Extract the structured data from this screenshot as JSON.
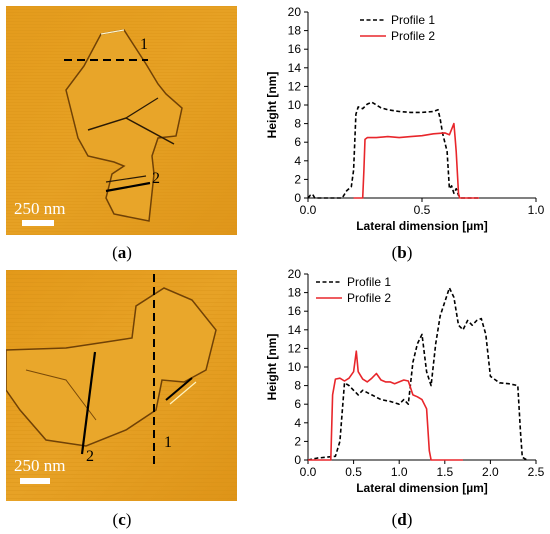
{
  "panels": {
    "a": {
      "caption": "a",
      "scale_label": "250 nm",
      "profile_labels": [
        "1",
        "2"
      ]
    },
    "b": {
      "caption": "b"
    },
    "c": {
      "caption": "c",
      "scale_label": "250 nm",
      "profile_labels": [
        "2",
        "1"
      ]
    },
    "d": {
      "caption": "d"
    }
  },
  "colors": {
    "profile1": "#000000",
    "profile2": "#e8262b",
    "afm_base": "#e39a1a"
  },
  "chart_data": [
    {
      "type": "line",
      "panel": "b",
      "title": "",
      "xlabel": "Lateral dimension [µm]",
      "ylabel": "Height [nm]",
      "xlim": [
        0,
        1.0
      ],
      "ylim": [
        0,
        20
      ],
      "xticks": [
        "0.0",
        "0.5",
        "1.0"
      ],
      "yticks": [
        "0",
        "2",
        "4",
        "6",
        "8",
        "10",
        "12",
        "14",
        "16",
        "18",
        "20"
      ],
      "legend_position": "top-right",
      "series": [
        {
          "name": "Profile 1",
          "style": "dashed",
          "color": "#000000",
          "x": [
            0.0,
            0.01,
            0.02,
            0.03,
            0.05,
            0.1,
            0.15,
            0.17,
            0.19,
            0.2,
            0.21,
            0.22,
            0.24,
            0.26,
            0.28,
            0.3,
            0.32,
            0.35,
            0.4,
            0.45,
            0.5,
            0.55,
            0.57,
            0.58,
            0.59,
            0.6,
            0.61,
            0.62,
            0.63,
            0.64,
            0.65,
            0.66,
            0.67,
            0.7,
            0.75
          ],
          "y": [
            0.0,
            0.3,
            0.4,
            0.0,
            0.0,
            0.0,
            0.0,
            0.8,
            1.2,
            3.0,
            9.0,
            9.8,
            9.6,
            10.1,
            10.3,
            10.0,
            9.7,
            9.5,
            9.3,
            9.2,
            9.2,
            9.3,
            9.5,
            8.5,
            7.0,
            6.0,
            5.0,
            1.0,
            1.3,
            0.5,
            1.0,
            0.3,
            0.0,
            0.0,
            0.0
          ]
        },
        {
          "name": "Profile 2",
          "style": "solid",
          "color": "#e8262b",
          "x": [
            0.2,
            0.24,
            0.245,
            0.25,
            0.26,
            0.3,
            0.35,
            0.4,
            0.45,
            0.5,
            0.55,
            0.6,
            0.62,
            0.64,
            0.645,
            0.65,
            0.66,
            0.665,
            0.7,
            0.75
          ],
          "y": [
            0.0,
            0.0,
            3.0,
            6.3,
            6.5,
            6.5,
            6.6,
            6.5,
            6.6,
            6.7,
            6.9,
            7.0,
            6.8,
            8.0,
            6.5,
            5.0,
            0.5,
            0.0,
            0.0,
            0.0
          ]
        }
      ]
    },
    {
      "type": "line",
      "panel": "d",
      "title": "",
      "xlabel": "Lateral dimension [µm]",
      "ylabel": "Height [nm]",
      "xlim": [
        0,
        2.5
      ],
      "ylim": [
        0,
        20
      ],
      "xticks": [
        "0.0",
        "0.5",
        "1.0",
        "1.5",
        "2.0",
        "2.5"
      ],
      "yticks": [
        "0",
        "2",
        "4",
        "6",
        "8",
        "10",
        "12",
        "14",
        "16",
        "18",
        "20"
      ],
      "legend_position": "top-left",
      "series": [
        {
          "name": "Profile 1",
          "style": "dashed",
          "color": "#000000",
          "x": [
            0.0,
            0.1,
            0.2,
            0.3,
            0.35,
            0.4,
            0.45,
            0.5,
            0.55,
            0.6,
            0.7,
            0.8,
            0.9,
            1.0,
            1.05,
            1.1,
            1.15,
            1.2,
            1.25,
            1.3,
            1.35,
            1.4,
            1.45,
            1.5,
            1.55,
            1.6,
            1.65,
            1.7,
            1.75,
            1.8,
            1.85,
            1.9,
            1.95,
            2.0,
            2.1,
            2.2,
            2.3,
            2.33,
            2.35,
            2.4
          ],
          "y": [
            0.0,
            0.2,
            0.3,
            0.4,
            2.0,
            8.3,
            8.0,
            7.5,
            7.0,
            7.5,
            7.0,
            6.5,
            6.3,
            6.0,
            6.5,
            6.0,
            10.5,
            12.5,
            13.5,
            9.5,
            8.0,
            12.5,
            15.5,
            17.0,
            18.5,
            17.5,
            14.5,
            14.0,
            15.0,
            14.5,
            15.0,
            15.2,
            13.5,
            9.0,
            8.3,
            8.2,
            8.0,
            3.0,
            0.3,
            0.0
          ]
        },
        {
          "name": "Profile 2",
          "style": "solid",
          "color": "#e8262b",
          "x": [
            0.0,
            0.2,
            0.25,
            0.27,
            0.3,
            0.35,
            0.4,
            0.45,
            0.5,
            0.53,
            0.55,
            0.6,
            0.65,
            0.7,
            0.75,
            0.8,
            0.85,
            0.9,
            0.95,
            1.0,
            1.05,
            1.1,
            1.15,
            1.2,
            1.25,
            1.3,
            1.33,
            1.35,
            1.4,
            1.7
          ],
          "y": [
            0.0,
            0.0,
            0.0,
            7.0,
            8.7,
            8.8,
            8.5,
            8.8,
            9.5,
            11.7,
            9.5,
            8.7,
            8.4,
            8.8,
            9.3,
            8.6,
            8.4,
            8.4,
            8.2,
            8.4,
            8.6,
            8.5,
            7.0,
            6.8,
            6.5,
            5.5,
            1.0,
            0.0,
            0.0,
            0.0
          ]
        }
      ]
    }
  ]
}
